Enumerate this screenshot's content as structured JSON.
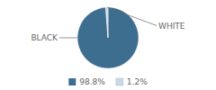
{
  "chart_data": {
    "type": "pie",
    "categories": [
      "BLACK",
      "WHITE"
    ],
    "values": [
      98.8,
      1.2
    ],
    "value_labels": [
      "98.8%",
      "1.2%"
    ],
    "colors": [
      "#3d6e8f",
      "#c8d8e8"
    ],
    "legend": "bottom"
  }
}
